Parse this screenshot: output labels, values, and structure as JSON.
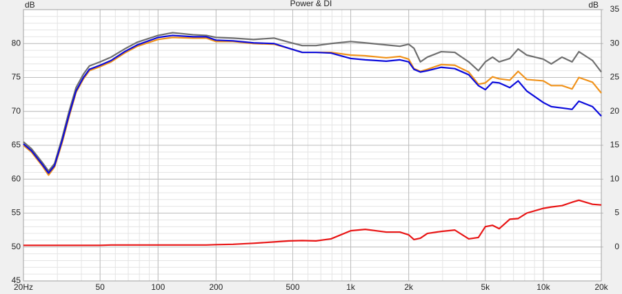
{
  "chart_data": {
    "type": "line",
    "title": "Power & DI",
    "ylabel": "dB",
    "y2label": "dB",
    "xscale": "log",
    "grid": true,
    "x": [
      20,
      22,
      25,
      27,
      29,
      31.7,
      34.5,
      37.5,
      41,
      44,
      50,
      57,
      67,
      78,
      100,
      119,
      152,
      178,
      200,
      245,
      313,
      400,
      478,
      560,
      660,
      790,
      1000,
      1190,
      1530,
      1800,
      2000,
      2130,
      2300,
      2500,
      2950,
      3470,
      4100,
      4600,
      5000,
      5450,
      5900,
      6700,
      7400,
      8200,
      10000,
      11000,
      12500,
      14100,
      15300,
      18000,
      20000
    ],
    "xlim": [
      20,
      20000
    ],
    "xticks": [
      {
        "value": 20,
        "label": "20Hz"
      },
      50,
      100,
      200,
      500,
      {
        "value": 1000,
        "label": "1k"
      },
      {
        "value": 2000,
        "label": "2k"
      },
      {
        "value": 5000,
        "label": "5k"
      },
      {
        "value": 10000,
        "label": "10k"
      },
      {
        "value": 20000,
        "label": "20k"
      }
    ],
    "ylim": [
      45,
      85
    ],
    "yticks": [
      45,
      50,
      55,
      60,
      65,
      70,
      75,
      80
    ],
    "y2lim": [
      -5,
      35
    ],
    "y2ticks": [
      0,
      5,
      10,
      15,
      20,
      25,
      30,
      35
    ],
    "series": [
      {
        "color": "#6e6e6e",
        "values": [
          65.5,
          64.5,
          62.5,
          61.2,
          62.3,
          66,
          70,
          73.5,
          75.5,
          76.7,
          77.3,
          78,
          79.2,
          80.2,
          81.2,
          81.6,
          81.3,
          81.2,
          80.9,
          80.8,
          80.6,
          80.8,
          80.2,
          79.7,
          79.7,
          80,
          80.3,
          80.1,
          79.8,
          79.6,
          79.9,
          79.3,
          77.3,
          78,
          78.8,
          78.7,
          77.3,
          76,
          77.3,
          78,
          77.3,
          77.8,
          79.2,
          78.3,
          77.7,
          77,
          78,
          77.3,
          78.8,
          77.5,
          75.8
        ]
      },
      {
        "color": "#f0921a",
        "values": [
          65,
          64,
          62,
          60.6,
          61.8,
          65.3,
          69.2,
          72.8,
          74.8,
          76,
          76.6,
          77.3,
          78.6,
          79.6,
          80.6,
          80.9,
          80.8,
          80.8,
          80.3,
          80.3,
          80,
          79.9,
          79.3,
          78.7,
          78.7,
          78.7,
          78.3,
          78.2,
          77.9,
          78.1,
          77.7,
          76.3,
          75.9,
          76.2,
          76.9,
          76.8,
          75.8,
          74,
          74.2,
          75.1,
          74.8,
          74.6,
          75.9,
          74.7,
          74.5,
          73.8,
          73.8,
          73.3,
          75,
          74.3,
          72.7
        ]
      },
      {
        "color": "#0a0adc",
        "values": [
          65.2,
          64.2,
          62.2,
          60.9,
          62,
          65.6,
          69.5,
          73,
          75,
          76.2,
          76.8,
          77.5,
          78.8,
          79.8,
          80.9,
          81.2,
          81,
          81,
          80.5,
          80.4,
          80.1,
          80,
          79.3,
          78.7,
          78.7,
          78.6,
          77.8,
          77.6,
          77.4,
          77.6,
          77.3,
          76.2,
          75.8,
          76,
          76.5,
          76.3,
          75.4,
          73.8,
          73.2,
          74.3,
          74.2,
          73.5,
          74.5,
          73,
          71.3,
          70.7,
          70.5,
          70.3,
          71.5,
          70.7,
          69.3
        ]
      },
      {
        "color": "#e81414",
        "axis": "y2",
        "values": [
          0.25,
          0.25,
          0.25,
          0.25,
          0.25,
          0.25,
          0.25,
          0.25,
          0.25,
          0.25,
          0.25,
          0.3,
          0.3,
          0.3,
          0.3,
          0.3,
          0.3,
          0.3,
          0.35,
          0.4,
          0.55,
          0.75,
          0.9,
          0.95,
          0.9,
          1.2,
          2.4,
          2.6,
          2.2,
          2.2,
          1.8,
          1.1,
          1.3,
          2,
          2.3,
          2.5,
          1.2,
          1.4,
          3,
          3.2,
          2.7,
          4.1,
          4.2,
          5,
          5.7,
          5.9,
          6.1,
          6.6,
          6.9,
          6.3,
          6.2
        ]
      }
    ]
  }
}
